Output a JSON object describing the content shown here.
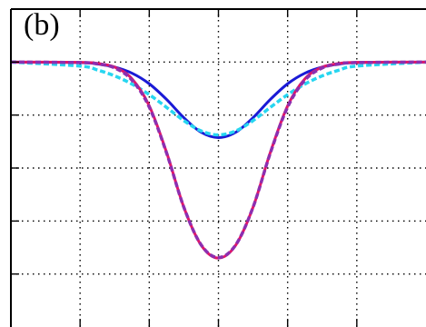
{
  "panel_label": "(b)",
  "chart_data": {
    "type": "line",
    "title": "",
    "xlabel": "",
    "ylabel": "",
    "xlim": [
      -3,
      3
    ],
    "ylim": [
      0,
      1.2
    ],
    "grid": true,
    "grid_style": "dotted",
    "x_gridlines": [
      -2,
      -1,
      0,
      1,
      2
    ],
    "y_gridlines": [
      0.2,
      0.4,
      0.6,
      0.8,
      1.0
    ],
    "legend": "none",
    "series": [
      {
        "color": "#1a1ad6",
        "style": "solid",
        "x": [
          -3.0,
          -2.0,
          -1.75,
          -1.5,
          -1.25,
          -1.0,
          -0.75,
          -0.5,
          -0.25,
          0.0,
          0.25,
          0.5,
          0.75,
          1.0,
          1.25,
          1.5,
          1.75,
          2.0,
          3.0
        ],
        "y": [
          1.0,
          0.998,
          0.993,
          0.981,
          0.958,
          0.918,
          0.859,
          0.79,
          0.735,
          0.715,
          0.735,
          0.79,
          0.859,
          0.918,
          0.958,
          0.981,
          0.993,
          0.998,
          1.0
        ]
      },
      {
        "color": "#27d6f0",
        "style": "dashed",
        "x": [
          -3.0,
          -2.0,
          -1.75,
          -1.5,
          -1.25,
          -1.0,
          -0.75,
          -0.5,
          -0.25,
          0.0,
          0.25,
          0.5,
          0.75,
          1.0,
          1.25,
          1.5,
          1.75,
          2.0,
          3.0
        ],
        "y": [
          1.0,
          0.985,
          0.97,
          0.948,
          0.917,
          0.877,
          0.829,
          0.779,
          0.74,
          0.725,
          0.74,
          0.779,
          0.829,
          0.877,
          0.917,
          0.948,
          0.97,
          0.985,
          1.0
        ]
      },
      {
        "color": "#e0166a",
        "style": "solid",
        "x": [
          -3.0,
          -2.0,
          -1.75,
          -1.5,
          -1.25,
          -1.0,
          -0.75,
          -0.5,
          -0.25,
          0.0,
          0.25,
          0.5,
          0.75,
          1.0,
          1.25,
          1.5,
          1.75,
          2.0,
          3.0
        ],
        "y": [
          1.0,
          0.999,
          0.995,
          0.981,
          0.937,
          0.835,
          0.659,
          0.452,
          0.309,
          0.26,
          0.309,
          0.452,
          0.659,
          0.835,
          0.937,
          0.981,
          0.995,
          0.999,
          1.0
        ]
      },
      {
        "color": "#8c2fb0",
        "style": "dashed",
        "x": [
          -3.0,
          -2.0,
          -1.75,
          -1.5,
          -1.25,
          -1.0,
          -0.75,
          -0.5,
          -0.25,
          0.0,
          0.25,
          0.5,
          0.75,
          1.0,
          1.25,
          1.5,
          1.75,
          2.0,
          3.0
        ],
        "y": [
          1.0,
          0.998,
          0.993,
          0.978,
          0.932,
          0.83,
          0.657,
          0.452,
          0.31,
          0.262,
          0.31,
          0.452,
          0.657,
          0.83,
          0.932,
          0.978,
          0.993,
          0.998,
          1.0
        ]
      }
    ]
  }
}
